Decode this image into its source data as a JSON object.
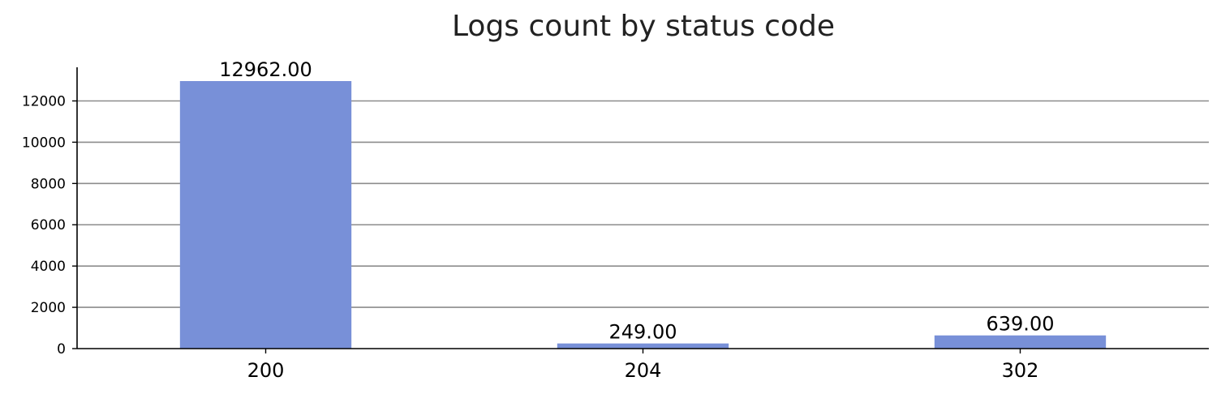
{
  "chart_data": {
    "type": "bar",
    "title": "Logs count by status code",
    "xlabel": "",
    "ylabel": "",
    "categories": [
      "200",
      "204",
      "302"
    ],
    "values": [
      12962,
      249,
      639
    ],
    "value_labels": [
      "12962.00",
      "249.00",
      "639.00"
    ],
    "ylim": [
      0,
      13600
    ],
    "yticks": [
      0,
      2000,
      4000,
      6000,
      8000,
      10000,
      12000
    ],
    "ytick_labels": [
      "0",
      "2000",
      "4000",
      "6000",
      "8000",
      "10000",
      "12000"
    ],
    "grid": "horizontal",
    "legend": "none",
    "bar_color": "#7890d8",
    "grid_color": "#8c8c8c",
    "axis_color": "#000000"
  }
}
